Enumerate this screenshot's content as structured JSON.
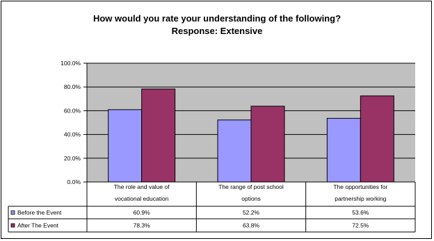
{
  "chart_data": {
    "type": "bar",
    "title": "How would you rate your understanding of the following?",
    "subtitle": "Response: Extensive",
    "categories": [
      [
        "The role and value of",
        "vocational education"
      ],
      [
        "The range of post school",
        "options"
      ],
      [
        "The opportunities for",
        "partnership working"
      ]
    ],
    "series": [
      {
        "name": "Before the Event",
        "values": [
          60.9,
          52.2,
          53.6
        ],
        "labels": [
          "60.9%",
          "52.2%",
          "53.6%"
        ],
        "color": "#9999FF"
      },
      {
        "name": "After The Event",
        "values": [
          78.3,
          63.8,
          72.5
        ],
        "labels": [
          "78.3%",
          "63.8%",
          "72.5%"
        ],
        "color": "#993366"
      }
    ],
    "ylim": [
      0,
      100
    ],
    "yticks": [
      0,
      20,
      40,
      60,
      80,
      100
    ],
    "ytick_labels": [
      "0.0%",
      "20.0%",
      "40.0%",
      "60.0%",
      "80.0%",
      "100.0%"
    ],
    "grid": true,
    "plot_background": "#C0C0C0",
    "legend": "data table"
  }
}
